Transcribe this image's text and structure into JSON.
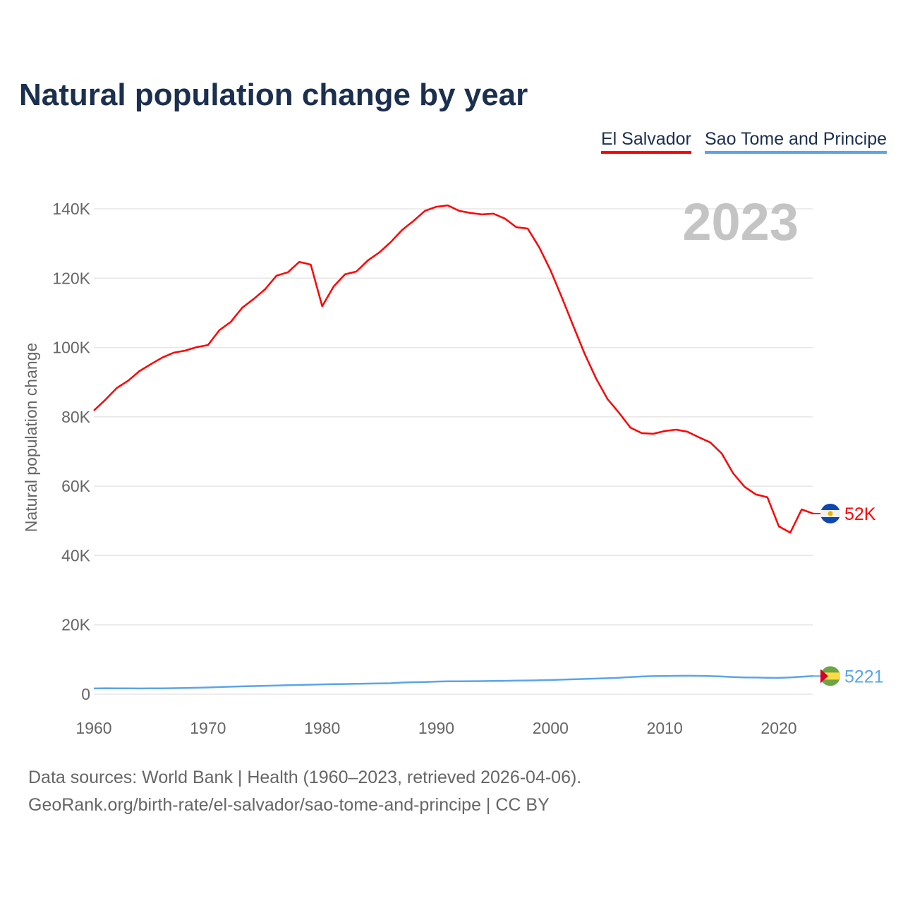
{
  "title": "Natural population change by year",
  "footer": {
    "line1": "Data sources: World Bank | Health (1960–2023, retrieved 2026-04-06).",
    "line2": "GeoRank.org/birth-rate/el-salvador/sao-tome-and-principe | CC BY"
  },
  "chart_data": {
    "type": "line",
    "title": "Natural population change by year",
    "xlabel": "",
    "ylabel": "Natural population change",
    "year_watermark": "2023",
    "xlim": [
      1960,
      2023
    ],
    "ylim": [
      0,
      140000
    ],
    "x_ticks": [
      "1960",
      "1970",
      "1980",
      "1990",
      "2000",
      "2010",
      "2020"
    ],
    "y_ticks": [
      {
        "value": 0,
        "label": "0"
      },
      {
        "value": 20000,
        "label": "20K"
      },
      {
        "value": 40000,
        "label": "40K"
      },
      {
        "value": 60000,
        "label": "60K"
      },
      {
        "value": 80000,
        "label": "80K"
      },
      {
        "value": 100000,
        "label": "100K"
      },
      {
        "value": 120000,
        "label": "120K"
      },
      {
        "value": 140000,
        "label": "140K"
      }
    ],
    "grid": true,
    "legend_position": "top-right",
    "x": [
      1960,
      1961,
      1962,
      1963,
      1964,
      1965,
      1966,
      1967,
      1968,
      1969,
      1970,
      1971,
      1972,
      1973,
      1974,
      1975,
      1976,
      1977,
      1978,
      1979,
      1980,
      1981,
      1982,
      1983,
      1984,
      1985,
      1986,
      1987,
      1988,
      1989,
      1990,
      1991,
      1992,
      1993,
      1994,
      1995,
      1996,
      1997,
      1998,
      1999,
      2000,
      2001,
      2002,
      2003,
      2004,
      2005,
      2006,
      2007,
      2008,
      2009,
      2010,
      2011,
      2012,
      2013,
      2014,
      2015,
      2016,
      2017,
      2018,
      2019,
      2020,
      2021,
      2022,
      2023
    ],
    "series": [
      {
        "name": "El Salvador",
        "color": "#ff0000",
        "end_label": "52K",
        "values": [
          81800,
          84900,
          88300,
          90400,
          93200,
          95200,
          97100,
          98500,
          99100,
          100100,
          100700,
          105000,
          107400,
          111500,
          114000,
          116800,
          120700,
          121700,
          124700,
          123900,
          111900,
          117600,
          121100,
          121900,
          125100,
          127400,
          130400,
          133900,
          136500,
          139400,
          140600,
          141000,
          139400,
          138800,
          138400,
          138600,
          137200,
          134700,
          134300,
          129000,
          122300,
          114400,
          106200,
          98100,
          91000,
          85100,
          81200,
          76900,
          75300,
          75100,
          75900,
          76300,
          75700,
          74100,
          72600,
          69400,
          63700,
          59800,
          57600,
          56800,
          48400,
          46600,
          53300,
          52100
        ]
      },
      {
        "name": "Sao Tome and Principe",
        "color": "#5aa5ea",
        "end_label": "5221",
        "values": [
          1650,
          1700,
          1680,
          1660,
          1640,
          1660,
          1680,
          1720,
          1780,
          1850,
          1930,
          2050,
          2150,
          2250,
          2330,
          2420,
          2500,
          2580,
          2660,
          2740,
          2820,
          2880,
          2940,
          3000,
          3060,
          3120,
          3150,
          3350,
          3450,
          3500,
          3650,
          3700,
          3720,
          3740,
          3760,
          3800,
          3850,
          3900,
          3950,
          4000,
          4100,
          4200,
          4300,
          4400,
          4500,
          4600,
          4750,
          4950,
          5100,
          5200,
          5250,
          5300,
          5320,
          5300,
          5200,
          5100,
          4950,
          4850,
          4800,
          4750,
          4700,
          4850,
          5050,
          5221
        ]
      }
    ]
  }
}
